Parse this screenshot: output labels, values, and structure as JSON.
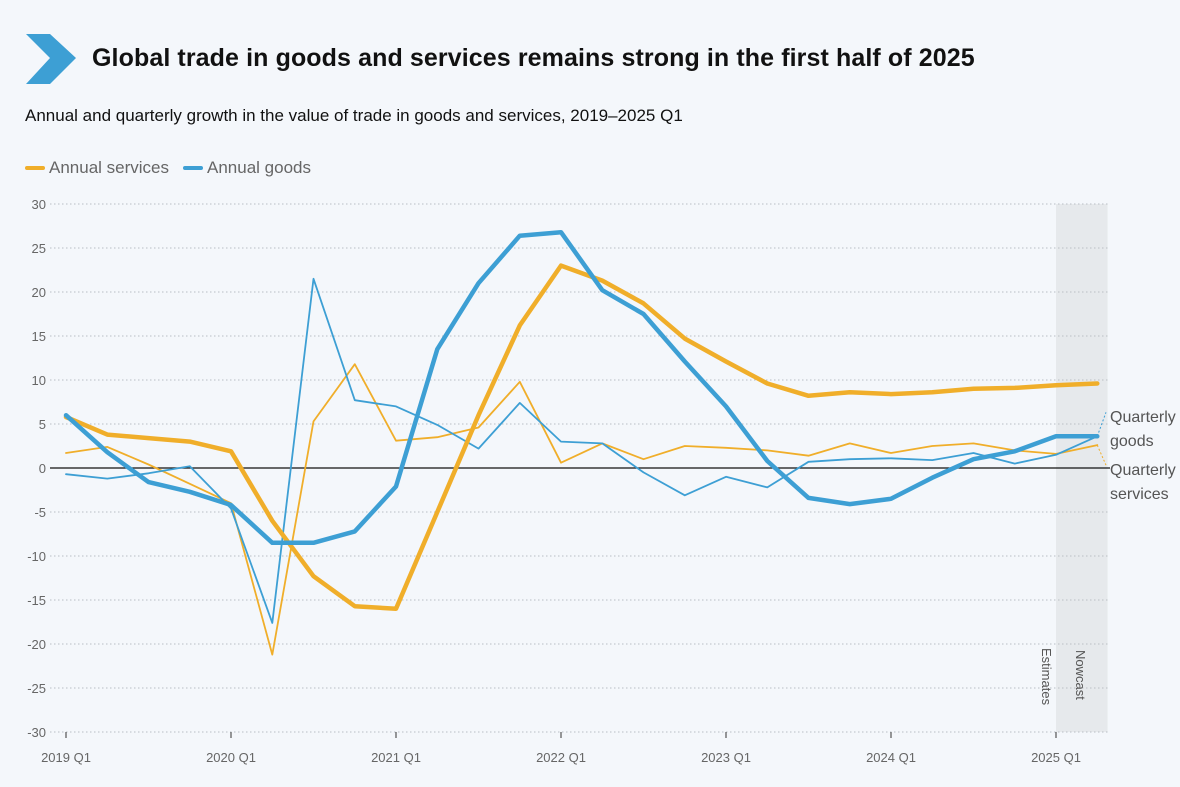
{
  "header": {
    "title": "Global trade in goods and services remains strong in the first half of 2025",
    "subtitle": "Annual and quarterly growth in the value of trade in goods and services, 2019–2025 Q1",
    "icon": "chevron-right-icon"
  },
  "legend": [
    {
      "label": "Annual services",
      "color": "#f0ae2a"
    },
    {
      "label": "Annual goods",
      "color": "#3d9fd4"
    }
  ],
  "end_labels": {
    "quarterly_goods_line1": "Quarterly",
    "quarterly_goods_line2": "goods",
    "quarterly_services_line1": "Quarterly",
    "quarterly_services_line2": "services"
  },
  "bands": {
    "estimates": "Estimates",
    "nowcast": "Nowcast"
  },
  "colors": {
    "services": "#f0ae2a",
    "goods": "#3d9fd4",
    "band": "#e6e9ec",
    "zero_line": "#111111",
    "grid": "#b9bec4"
  },
  "chart_data": {
    "type": "line",
    "title": "Annual and quarterly growth in the value of trade in goods and services, 2019–2025 Q1",
    "xlabel": "",
    "ylabel": "",
    "ylim": [
      -30,
      30
    ],
    "yticks": [
      30,
      25,
      20,
      15,
      10,
      5,
      0,
      -5,
      -10,
      -15,
      -20,
      -25,
      -30
    ],
    "x_tick_labels": [
      "2019 Q1",
      "2020 Q1",
      "2021 Q1",
      "2022 Q1",
      "2023 Q1",
      "2024 Q1",
      "2025 Q1"
    ],
    "x_tick_index": [
      0,
      4,
      8,
      12,
      16,
      20,
      24
    ],
    "shaded_region": {
      "from_index": 24,
      "to_index": 25.25,
      "label": "Nowcast"
    },
    "categories": [
      "2019 Q1",
      "2019 Q2",
      "2019 Q3",
      "2019 Q4",
      "2020 Q1",
      "2020 Q2",
      "2020 Q3",
      "2020 Q4",
      "2021 Q1",
      "2021 Q2",
      "2021 Q3",
      "2021 Q4",
      "2022 Q1",
      "2022 Q2",
      "2022 Q3",
      "2022 Q4",
      "2023 Q1",
      "2023 Q2",
      "2023 Q3",
      "2023 Q4",
      "2024 Q1",
      "2024 Q2",
      "2024 Q3",
      "2024 Q4",
      "2025 Q1",
      "2025 Q2"
    ],
    "series": [
      {
        "name": "Annual services",
        "style": "thick",
        "color": "#f0ae2a",
        "values": [
          5.8,
          3.8,
          3.4,
          3.0,
          1.9,
          -6.0,
          -12.3,
          -15.7,
          -16.0,
          -5.0,
          6.0,
          16.2,
          23.0,
          21.3,
          18.7,
          14.7,
          12.1,
          9.6,
          8.2,
          8.6,
          8.4,
          8.6,
          9.0,
          9.1,
          9.4,
          9.6
        ]
      },
      {
        "name": "Annual goods",
        "style": "thick",
        "color": "#3d9fd4",
        "values": [
          6.0,
          1.8,
          -1.6,
          -2.7,
          -4.2,
          -8.5,
          -8.5,
          -7.2,
          -2.1,
          13.5,
          21.0,
          26.4,
          26.8,
          20.2,
          17.5,
          12.1,
          7.0,
          0.8,
          -3.4,
          -4.1,
          -3.5,
          -1.1,
          1.0,
          1.9,
          3.6,
          3.6
        ]
      },
      {
        "name": "Quarterly services",
        "style": "thin",
        "color": "#f0ae2a",
        "values": [
          1.7,
          2.4,
          0.4,
          -1.8,
          -4.0,
          -21.2,
          5.3,
          11.8,
          3.1,
          3.5,
          4.6,
          9.8,
          0.6,
          2.8,
          1.0,
          2.5,
          2.3,
          2.0,
          1.4,
          2.8,
          1.7,
          2.5,
          2.8,
          2.0,
          1.6,
          2.6
        ]
      },
      {
        "name": "Quarterly goods",
        "style": "thin",
        "color": "#3d9fd4",
        "values": [
          -0.7,
          -1.2,
          -0.6,
          0.2,
          -4.6,
          -17.6,
          21.5,
          7.7,
          7.0,
          4.9,
          2.2,
          7.4,
          3.0,
          2.8,
          -0.5,
          -3.1,
          -1.0,
          -2.2,
          0.7,
          1.0,
          1.1,
          0.9,
          1.7,
          0.5,
          1.5,
          3.6
        ]
      }
    ]
  }
}
